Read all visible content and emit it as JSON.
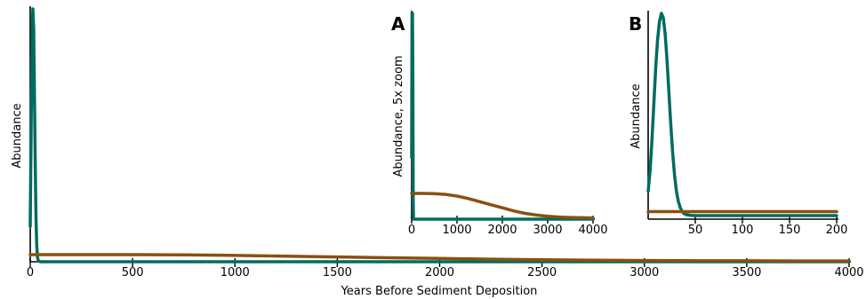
{
  "colors": {
    "teal": "#006b5f",
    "brown": "#8a5010"
  },
  "chart_data": [
    {
      "id": "main",
      "type": "line",
      "title": "",
      "xlabel": "Years Before Sediment Deposition",
      "ylabel": "Abundance",
      "xlim": [
        0,
        4000
      ],
      "ylim": [
        0,
        1
      ],
      "xticks": [
        "0",
        "500",
        "1000",
        "1500",
        "2000",
        "2500",
        "3000",
        "3500",
        "4000"
      ],
      "yticks": [],
      "grid": false,
      "series": [
        {
          "color": "teal",
          "x": [
            0,
            5,
            10,
            13,
            17,
            20,
            24,
            28,
            32,
            36,
            40,
            50,
            100,
            1000,
            2000,
            3000,
            4000
          ],
          "y": [
            0.14,
            0.58,
            0.92,
            1.0,
            0.92,
            0.7,
            0.42,
            0.18,
            0.06,
            0.015,
            0.003,
            0.0,
            0.0,
            0.0,
            0.0,
            0.0,
            0.0
          ]
        },
        {
          "color": "brown",
          "x": [
            0,
            250,
            500,
            750,
            1000,
            1250,
            1500,
            1750,
            2000,
            2250,
            2500,
            2750,
            3000,
            3250,
            3500,
            3750,
            4000
          ],
          "y": [
            0.028,
            0.028,
            0.028,
            0.027,
            0.025,
            0.022,
            0.019,
            0.016,
            0.013,
            0.01,
            0.008,
            0.006,
            0.005,
            0.004,
            0.004,
            0.003,
            0.003
          ]
        }
      ]
    },
    {
      "id": "A",
      "panel_label": "A",
      "type": "line",
      "title": "",
      "xlabel": "",
      "ylabel": "Abundance, 5x zoom",
      "xlim": [
        0,
        4000
      ],
      "ylim": [
        0,
        1
      ],
      "xticks": [
        "0",
        "1000",
        "2000",
        "3000",
        "4000"
      ],
      "yticks": [],
      "grid": false,
      "series": [
        {
          "color": "teal",
          "x": [
            0,
            8,
            13,
            18,
            26,
            34,
            40,
            50,
            4000
          ],
          "y": [
            0.3,
            1.0,
            1.0,
            1.0,
            0.7,
            0.1,
            0.0,
            0.0,
            0.0
          ]
        },
        {
          "color": "brown",
          "x": [
            0,
            250,
            500,
            750,
            1000,
            1250,
            1500,
            1750,
            2000,
            2250,
            2500,
            2750,
            3000,
            3250,
            3500,
            3750,
            4000
          ],
          "y": [
            0.125,
            0.125,
            0.124,
            0.12,
            0.112,
            0.1,
            0.085,
            0.07,
            0.055,
            0.04,
            0.028,
            0.02,
            0.014,
            0.01,
            0.008,
            0.007,
            0.006
          ]
        }
      ]
    },
    {
      "id": "B",
      "panel_label": "B",
      "type": "line",
      "title": "",
      "xlabel": "",
      "ylabel": "Abundance",
      "xlim": [
        0,
        200
      ],
      "ylim": [
        0,
        1
      ],
      "xticks": [
        "50",
        "100",
        "150",
        "200"
      ],
      "yticks": [],
      "grid": false,
      "series": [
        {
          "color": "teal",
          "x": [
            0,
            2,
            4,
            6,
            8,
            10,
            12,
            14,
            16,
            18,
            20,
            22,
            24,
            26,
            28,
            30,
            32,
            34,
            36,
            38,
            40,
            45,
            50,
            100,
            150,
            200
          ],
          "y": [
            0.12,
            0.22,
            0.37,
            0.55,
            0.73,
            0.87,
            0.96,
            1.0,
            0.98,
            0.9,
            0.77,
            0.61,
            0.45,
            0.31,
            0.2,
            0.12,
            0.07,
            0.04,
            0.02,
            0.01,
            0.005,
            0.001,
            0.0,
            0.0,
            0.0,
            0.0
          ]
        },
        {
          "color": "brown",
          "x": [
            0,
            50,
            100,
            150,
            200
          ],
          "y": [
            0.02,
            0.02,
            0.02,
            0.02,
            0.02
          ]
        }
      ]
    }
  ]
}
